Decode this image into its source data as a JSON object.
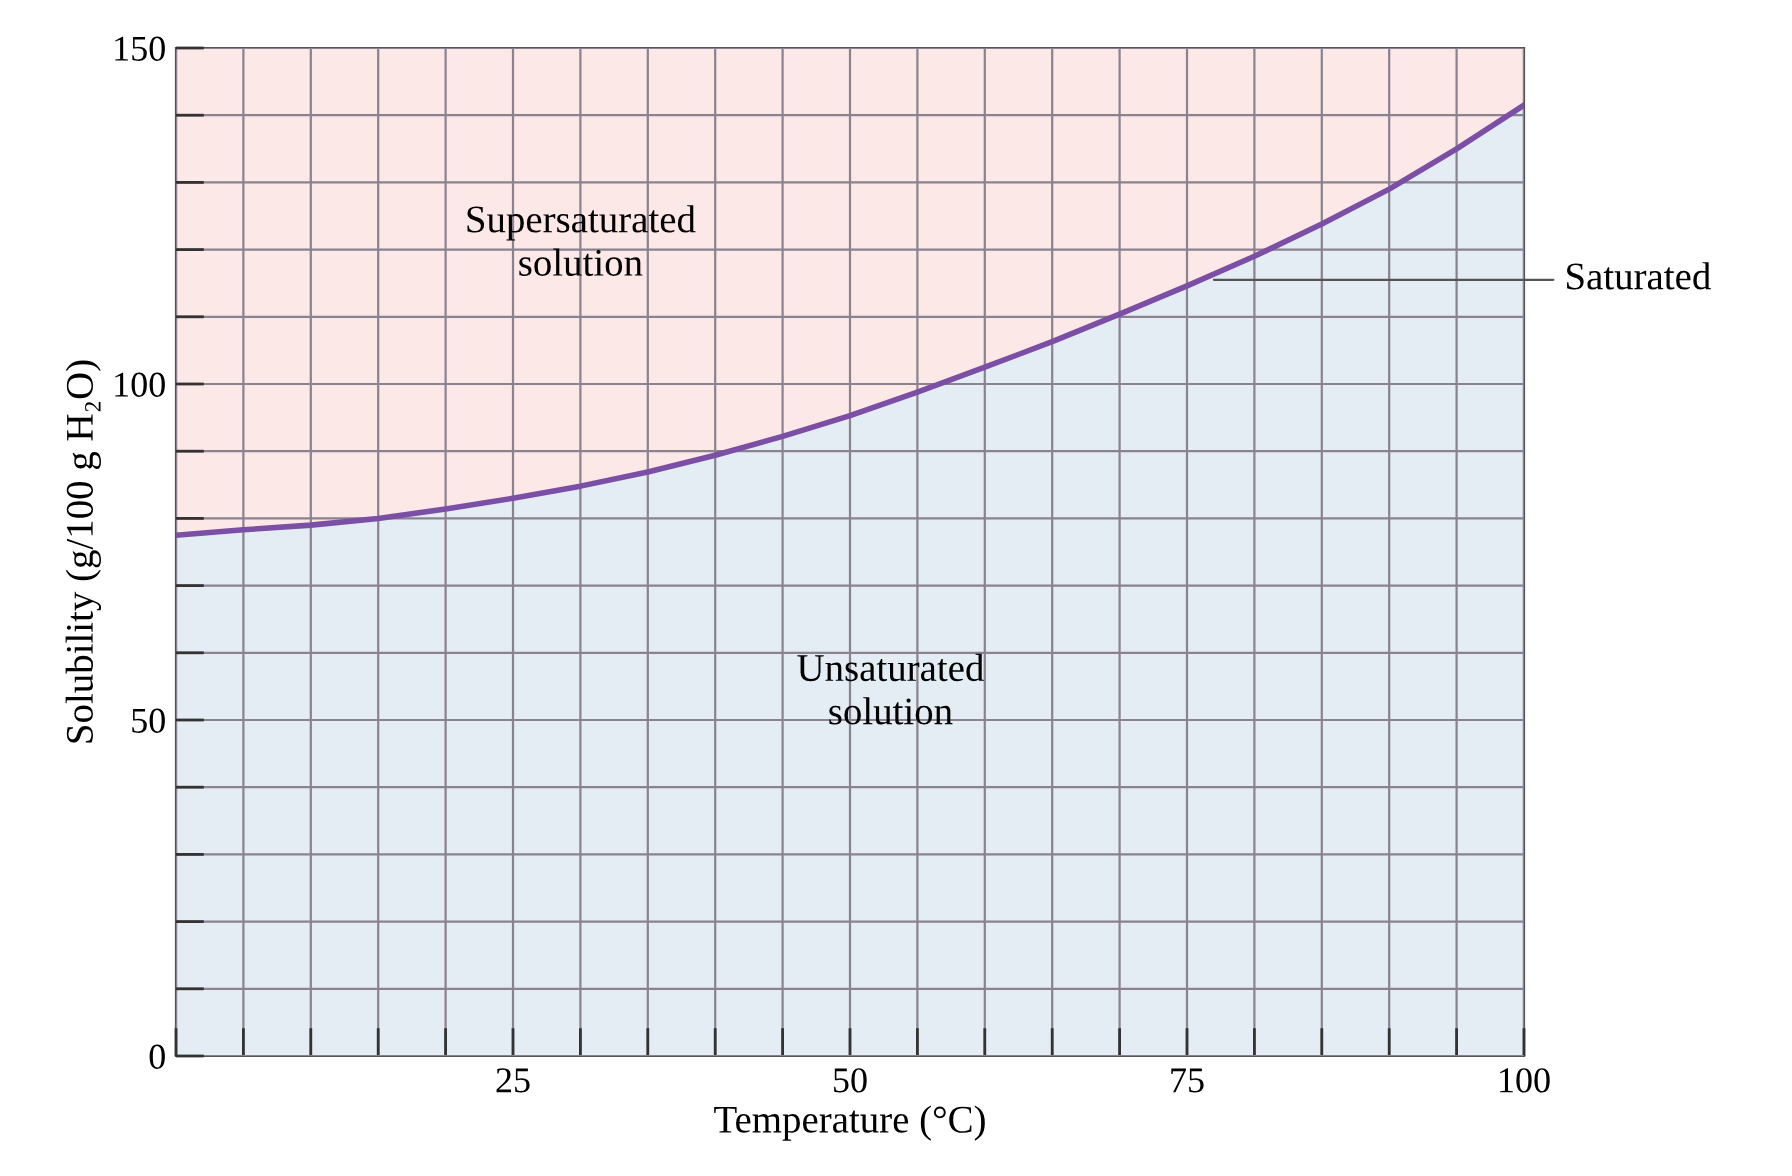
{
  "chart_data": {
    "type": "area",
    "xlabel": "Temperature (°C)",
    "ylabel": "Solubility (g/100 g H₂O)",
    "x": [
      0,
      5,
      10,
      15,
      20,
      25,
      30,
      35,
      40,
      45,
      50,
      55,
      60,
      65,
      70,
      75,
      80,
      85,
      90,
      95,
      100
    ],
    "series": [
      {
        "color": "#7a4fa5",
        "values": [
          77.5,
          78.3,
          79.0,
          80.0,
          81.4,
          83.0,
          84.8,
          86.9,
          89.4,
          92.2,
          95.3,
          98.8,
          102.5,
          106.3,
          110.4,
          114.6,
          119.0,
          123.8,
          129.0,
          135.0,
          141.5
        ]
      }
    ],
    "xlim": [
      0,
      100
    ],
    "ylim": [
      0,
      150
    ],
    "xticks": [
      {
        "value": 0,
        "label": null
      },
      {
        "value": 5,
        "label": null
      },
      {
        "value": 10,
        "label": null
      },
      {
        "value": 15,
        "label": null
      },
      {
        "value": 20,
        "label": null
      },
      25,
      {
        "value": 30,
        "label": null
      },
      {
        "value": 35,
        "label": null
      },
      {
        "value": 40,
        "label": null
      },
      {
        "value": 45,
        "label": null
      },
      50,
      {
        "value": 55,
        "label": null
      },
      {
        "value": 60,
        "label": null
      },
      {
        "value": 65,
        "label": null
      },
      {
        "value": 70,
        "label": null
      },
      75,
      {
        "value": 80,
        "label": null
      },
      {
        "value": 85,
        "label": null
      },
      {
        "value": 90,
        "label": null
      },
      {
        "value": 95,
        "label": null
      },
      100
    ],
    "yticks": [
      0,
      {
        "value": 10,
        "label": null
      },
      {
        "value": 20,
        "label": null
      },
      {
        "value": 30,
        "label": null
      },
      {
        "value": 40,
        "label": null
      },
      50,
      {
        "value": 60,
        "label": null
      },
      {
        "value": 70,
        "label": null
      },
      {
        "value": 80,
        "label": null
      },
      {
        "value": 90,
        "label": null
      },
      100,
      {
        "value": 110,
        "label": null
      },
      {
        "value": 120,
        "label": null
      },
      {
        "value": 130,
        "label": null
      },
      {
        "value": 140,
        "label": null
      },
      150
    ],
    "grid": true,
    "marker": "none",
    "line_style": "solid",
    "annotations": [
      {
        "text": "Saturated",
        "x": 77,
        "y": 115.5
      },
      "Supersaturated\nsolution",
      "Unsaturated\nsolution"
    ]
  }
}
